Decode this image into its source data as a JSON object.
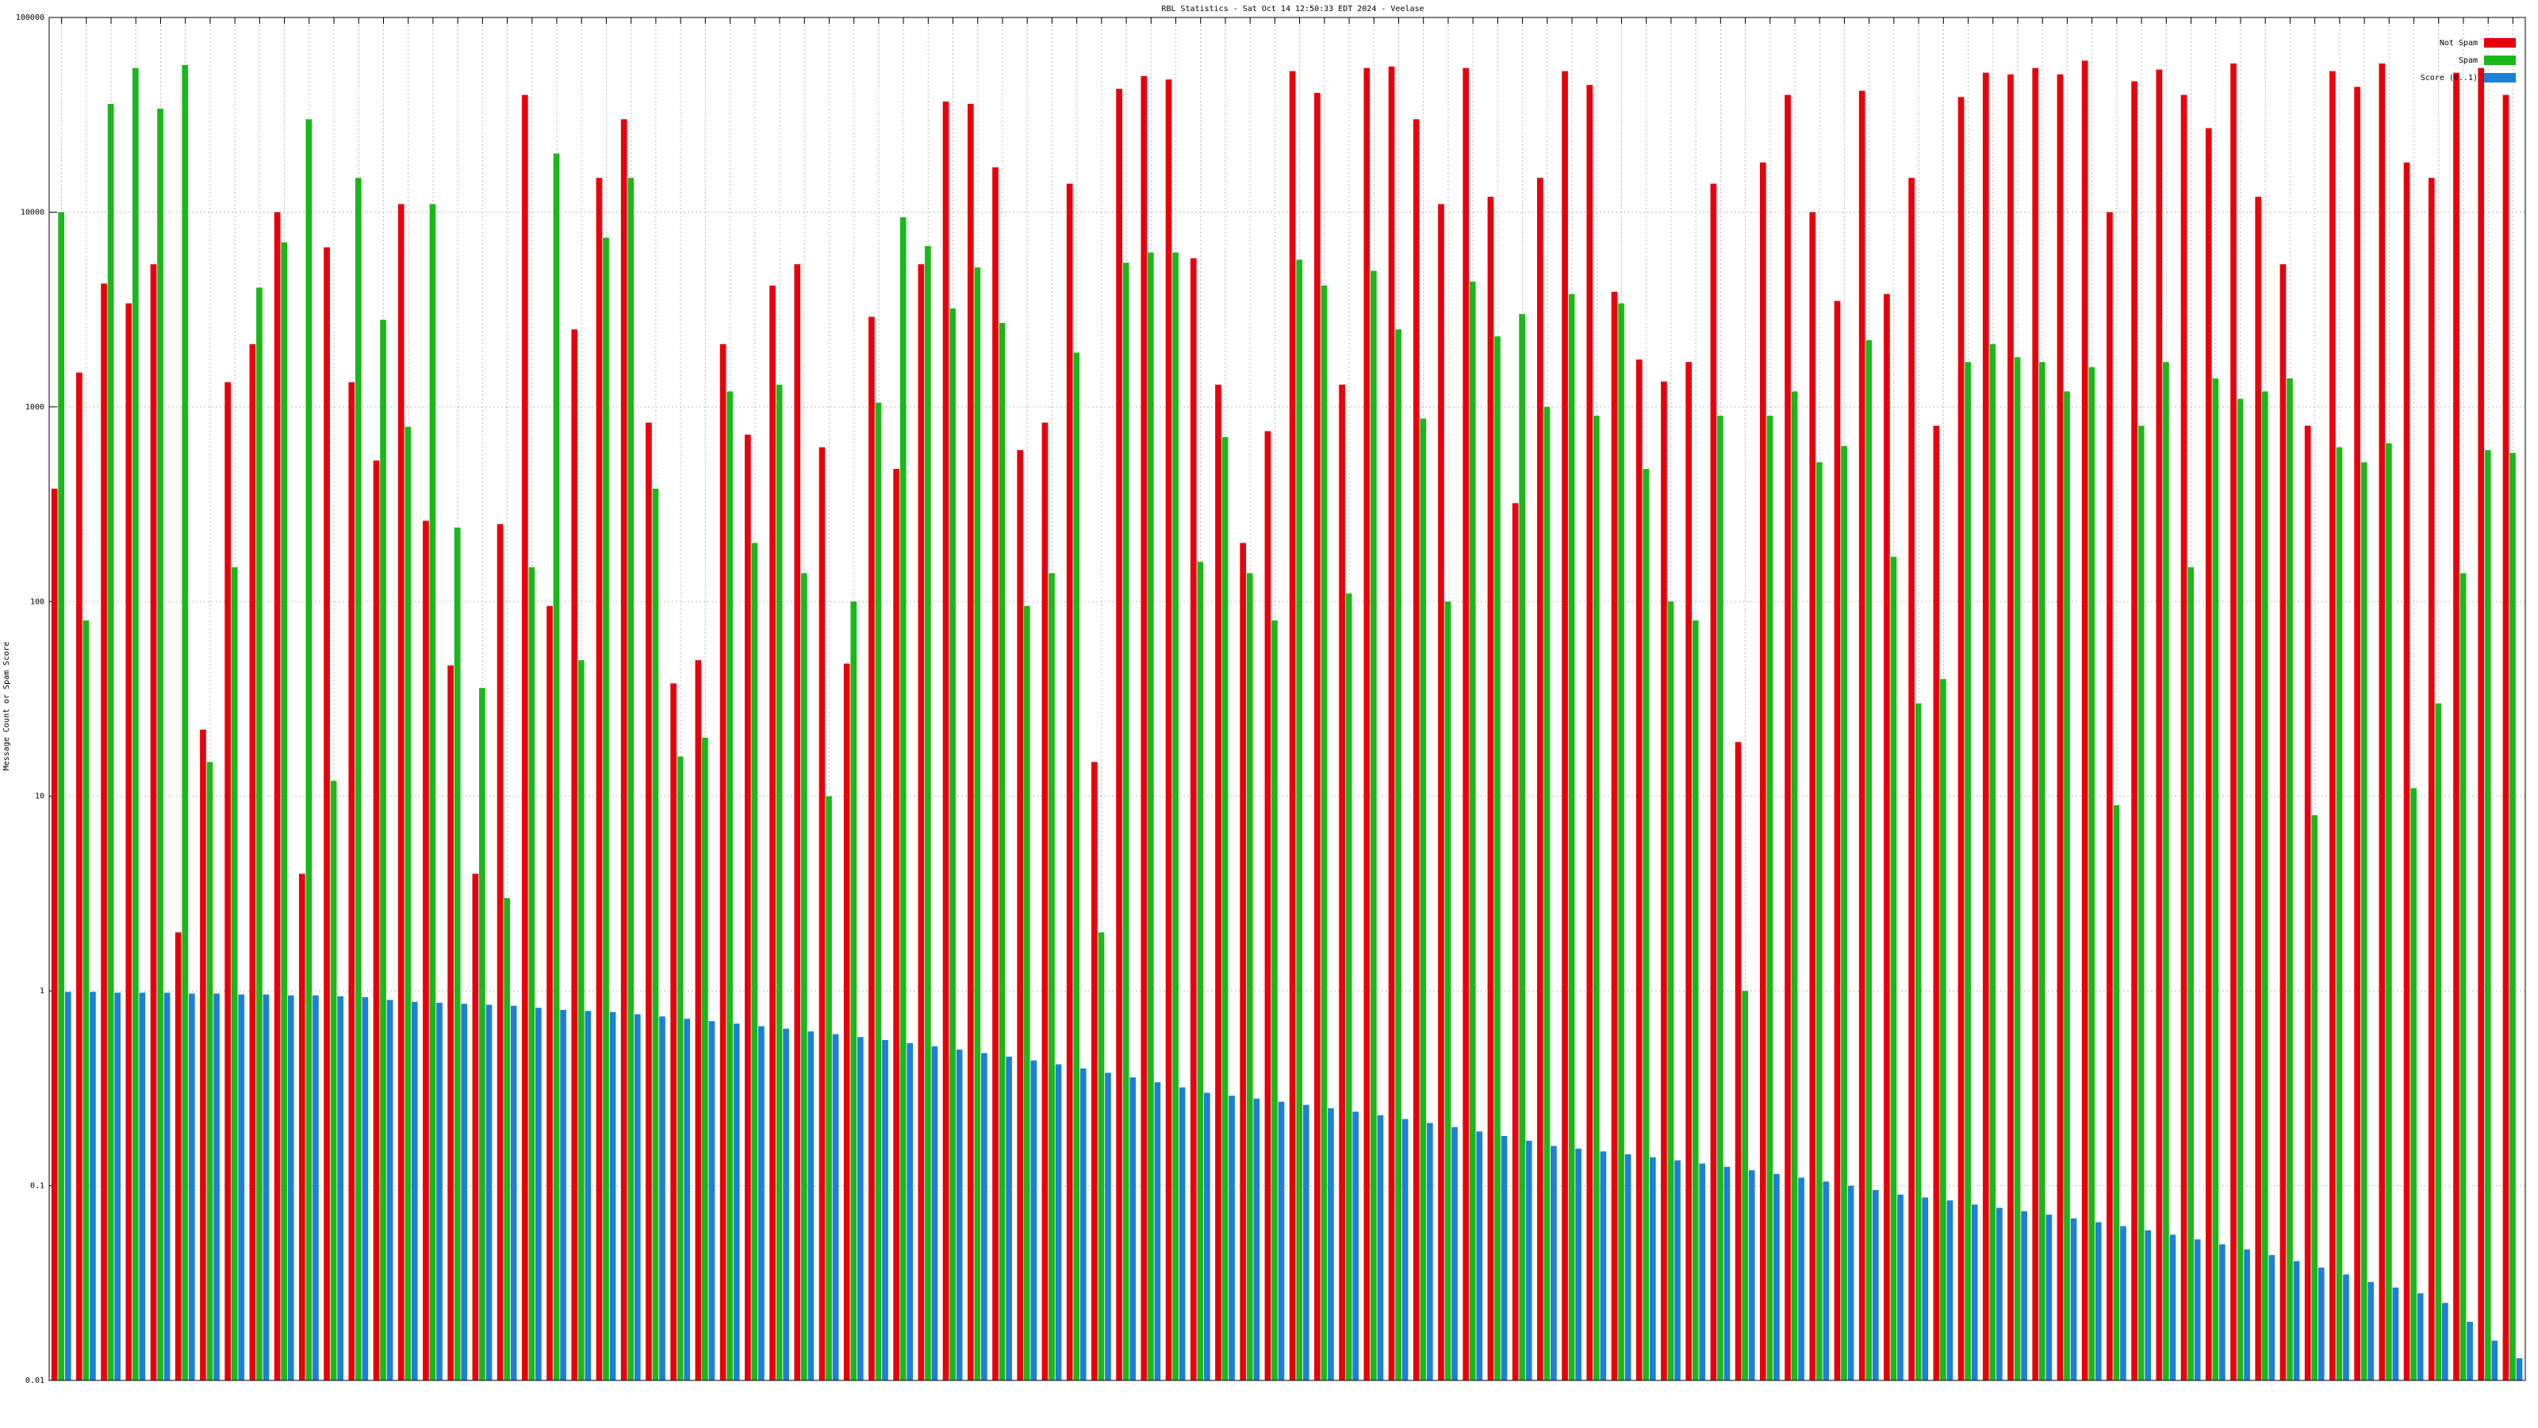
{
  "chart_data": {
    "type": "bar",
    "title": "RBL Statistics - Sat Oct 14 12:50:33 EDT 2024 - Veelase",
    "y_label": "Message Count or Spam Score",
    "y_scale": "log",
    "grid": true,
    "legend": "top-right",
    "ylim": [
      0.01,
      100000
    ],
    "yticks": [
      0.01,
      0.1,
      1,
      10,
      100,
      1000,
      10000,
      100000
    ],
    "categories": [
      null,
      null,
      null,
      null,
      null,
      null,
      null,
      null,
      null,
      null,
      null,
      null,
      null,
      null,
      null,
      null,
      null,
      null,
      null,
      null,
      null,
      null,
      null,
      null,
      null,
      null,
      null,
      null,
      null,
      null,
      null,
      null,
      null,
      null,
      null,
      null,
      null,
      null,
      null,
      null,
      null,
      null,
      null,
      null,
      null,
      null,
      null,
      null,
      null,
      null,
      null,
      null,
      null,
      null,
      null,
      null,
      null,
      null,
      null,
      null,
      null,
      null,
      null,
      null,
      null,
      null,
      null,
      null,
      null,
      null,
      null,
      null,
      null,
      null,
      null,
      null,
      null,
      null,
      null,
      null,
      null,
      null,
      null,
      null,
      null,
      null,
      null,
      null,
      null,
      null,
      null,
      null,
      null,
      null,
      null,
      null,
      null,
      null,
      null,
      null
    ],
    "series": [
      {
        "name": "Not Spam",
        "color": "#e8000b",
        "values": [
          380,
          1500,
          4300,
          3400,
          5400,
          2,
          22,
          1340,
          2100,
          10000,
          4,
          6600,
          1340,
          530,
          11000,
          260,
          47,
          4,
          250,
          40000,
          95,
          2500,
          15000,
          30000,
          830,
          38,
          50,
          2100,
          720,
          4200,
          5400,
          620,
          48,
          2900,
          480,
          5400,
          37000,
          36000,
          17000,
          600,
          830,
          14000,
          15,
          43000,
          50000,
          48000,
          5800,
          1300,
          200,
          750,
          53000,
          41000,
          1300,
          55000,
          56000,
          30000,
          11000,
          55000,
          12000,
          320,
          15000,
          53000,
          45000,
          3900,
          1750,
          1350,
          1700,
          14000,
          19,
          18000,
          40000,
          10000,
          3500,
          42000,
          3800,
          15000,
          800,
          39000,
          52000,
          51000,
          55000,
          51000,
          60000,
          10000,
          47000,
          54000,
          40000,
          27000,
          58000,
          12000,
          5400,
          800,
          53000,
          44000,
          58000,
          18000,
          15000,
          52000,
          55000,
          40000
        ]
      },
      {
        "name": "Spam",
        "color": "#1ab81a",
        "values": [
          10000,
          80,
          36000,
          55000,
          34000,
          57000,
          15,
          150,
          4100,
          7000,
          30000,
          12,
          15000,
          2800,
          790,
          11000,
          240,
          36,
          3,
          150,
          20000,
          50,
          7400,
          15000,
          380,
          16,
          20,
          1200,
          200,
          1300,
          140,
          10,
          100,
          1050,
          9400,
          6700,
          3200,
          5200,
          2700,
          95,
          140,
          1900,
          2,
          5500,
          6200,
          6200,
          160,
          700,
          140,
          80,
          5700,
          4200,
          110,
          5000,
          2500,
          870,
          100,
          4400,
          2300,
          3000,
          1000,
          3800,
          900,
          3400,
          480,
          100,
          80,
          900,
          1,
          900,
          1200,
          520,
          630,
          2200,
          170,
          30,
          40,
          1700,
          2100,
          1800,
          1700,
          1200,
          1600,
          9,
          800,
          1700,
          150,
          1400,
          1100,
          1200,
          1400,
          8,
          620,
          520,
          650,
          11,
          30,
          140,
          600,
          580
        ]
      },
      {
        "name": "Score (0..1)",
        "color": "#1e7fd8",
        "values": [
          0.99,
          0.99,
          0.98,
          0.98,
          0.98,
          0.97,
          0.97,
          0.96,
          0.96,
          0.95,
          0.95,
          0.94,
          0.93,
          0.9,
          0.88,
          0.87,
          0.86,
          0.85,
          0.84,
          0.82,
          0.8,
          0.79,
          0.78,
          0.76,
          0.74,
          0.72,
          0.7,
          0.68,
          0.66,
          0.64,
          0.62,
          0.6,
          0.58,
          0.56,
          0.54,
          0.52,
          0.5,
          0.48,
          0.46,
          0.44,
          0.42,
          0.4,
          0.38,
          0.36,
          0.34,
          0.32,
          0.3,
          0.29,
          0.28,
          0.27,
          0.26,
          0.25,
          0.24,
          0.23,
          0.22,
          0.21,
          0.2,
          0.19,
          0.18,
          0.17,
          0.16,
          0.155,
          0.15,
          0.145,
          0.14,
          0.135,
          0.13,
          0.125,
          0.12,
          0.115,
          0.11,
          0.105,
          0.1,
          0.095,
          0.09,
          0.087,
          0.084,
          0.08,
          0.077,
          0.074,
          0.071,
          0.068,
          0.065,
          0.062,
          0.059,
          0.056,
          0.053,
          0.05,
          0.047,
          0.044,
          0.041,
          0.038,
          0.035,
          0.032,
          0.03,
          0.028,
          0.025,
          0.02,
          0.016,
          0.013
        ]
      }
    ]
  }
}
